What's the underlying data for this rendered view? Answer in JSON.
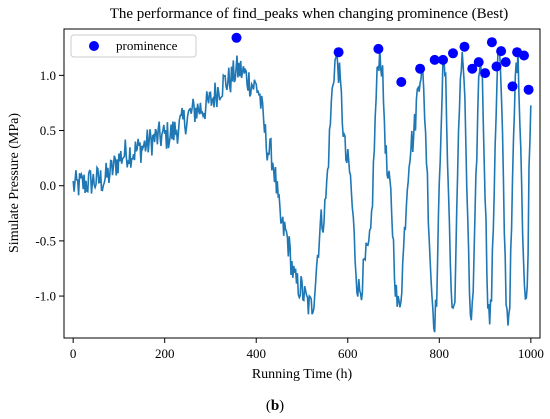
{
  "chart_data": {
    "type": "line",
    "title": "The performance of find_peaks when changing prominence (Best)",
    "xlabel": "Running Time (h)",
    "ylabel": "Simulate Pressure (MPa)",
    "caption_letter": "b",
    "xlim": [
      -20,
      1020
    ],
    "ylim": [
      -1.38,
      1.42
    ],
    "xticks": [
      0,
      200,
      400,
      600,
      800,
      1000
    ],
    "yticks": [
      -1.0,
      -0.5,
      0.0,
      0.5,
      1.0
    ],
    "ytick_labels": [
      "-1.0",
      "-0.5",
      "0.0",
      "0.5",
      "1.0"
    ],
    "grid": false,
    "legend": {
      "position": "top-left",
      "entries": [
        "prominence"
      ]
    },
    "colors": {
      "line": "#1f77b4",
      "markers": "#0000ff"
    },
    "series": [
      {
        "kind": "line",
        "x_start": 0,
        "x_end": 1000,
        "x_step": 2,
        "trend_breakpoints": {
          "x": [
            0,
            60,
            120,
            200,
            280,
            340,
            360,
            400,
            430,
            460,
            490,
            520,
            545,
            575,
            600,
            625,
            645,
            670,
            690,
            710,
            740,
            760,
            790,
            810,
            830,
            850,
            870,
            890,
            910,
            930,
            950,
            970,
            990,
            1000
          ],
          "y": [
            0.0,
            0.05,
            0.3,
            0.45,
            0.7,
            0.95,
            1.05,
            0.9,
            0.3,
            -0.4,
            -0.9,
            -1.1,
            -0.3,
            1.15,
            0.2,
            -0.95,
            -0.6,
            1.2,
            0.0,
            -1.1,
            0.4,
            1.05,
            -1.2,
            1.1,
            -1.15,
            1.2,
            -1.2,
            1.15,
            -1.2,
            1.2,
            -1.2,
            1.15,
            -1.1,
            0.7
          ]
        },
        "noise_amplitude": 0.14
      },
      {
        "kind": "scatter",
        "name": "prominence",
        "x": [
          357,
          580,
          667,
          717,
          758,
          790,
          808,
          830,
          855,
          872,
          886,
          900,
          915,
          925,
          935,
          945,
          960,
          970,
          985,
          995
        ],
        "y": [
          1.34,
          1.21,
          1.24,
          0.94,
          1.06,
          1.14,
          1.14,
          1.2,
          1.26,
          1.06,
          1.12,
          1.02,
          1.3,
          1.08,
          1.22,
          1.12,
          0.9,
          1.21,
          1.18,
          0.87
        ]
      }
    ]
  }
}
